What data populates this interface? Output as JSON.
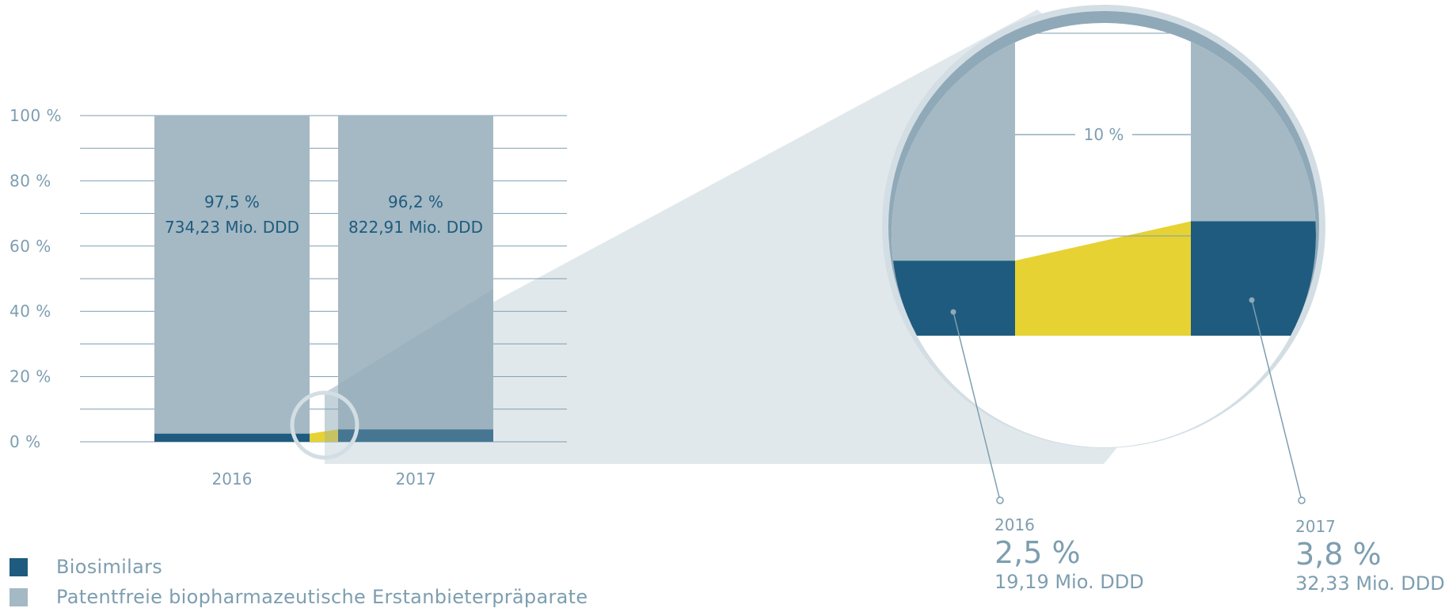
{
  "chart_data": {
    "type": "bar",
    "stacked": true,
    "categories": [
      "2016",
      "2017"
    ],
    "series": [
      {
        "name": "Biosimilars",
        "values": [
          2.5,
          3.8
        ]
      },
      {
        "name": "Patentfreie biopharmazeutische Erstanbieterpräparate",
        "values": [
          97.5,
          96.2
        ]
      }
    ],
    "yticks": [
      "0 %",
      "20 %",
      "40 %",
      "60 %",
      "80 %",
      "100 %"
    ],
    "ylim": [
      0,
      100
    ],
    "grid": true,
    "bar_labels": [
      {
        "pct": "97,5 %",
        "ddd": "734,23 Mio. DDD"
      },
      {
        "pct": "96,2 %",
        "ddd": "822,91 Mio. DDD"
      }
    ],
    "zoom_inset": {
      "tick_label": "10 %",
      "ylim": [
        0,
        10
      ]
    },
    "callouts": [
      {
        "year": "2016",
        "pct": "2,5 %",
        "ddd": "19,19 Mio. DDD"
      },
      {
        "year": "2017",
        "pct": "3,8 %",
        "ddd": "32,33 Mio. DDD"
      }
    ],
    "legend": {
      "placement": "bottom-left",
      "items": [
        "Biosimilars",
        "Patentfreie biopharmazeutische Erstanbieterpräparate"
      ]
    },
    "colors": {
      "biosimilars": "#1f5b7e",
      "originators": "#a4b9c4",
      "growth": "#e6d233",
      "grid": "#7d9eb0",
      "zoom_fill": "#e1e8ec",
      "ring_outer": "#d3dee4",
      "ring_inner": "#8fa9b8"
    }
  }
}
